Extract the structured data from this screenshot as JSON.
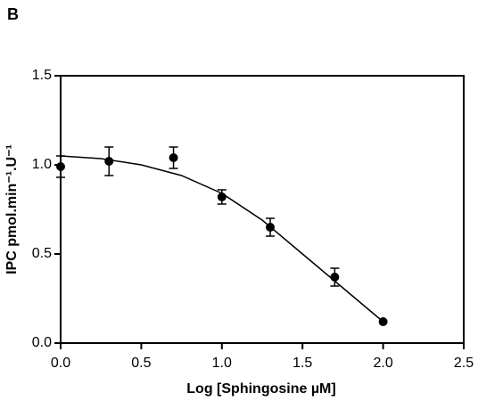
{
  "chart_data": {
    "type": "scatter",
    "panel_label": "B",
    "xlabel": "Log [Sphingosine µM]",
    "ylabel": "IPC pmol.min⁻¹.U⁻¹",
    "xlim": [
      0,
      2.5
    ],
    "ylim": [
      0,
      1.5
    ],
    "xticks": [
      {
        "value": 0,
        "label": "0.0"
      },
      {
        "value": 0.5,
        "label": "0.5"
      },
      {
        "value": 1,
        "label": "1.0"
      },
      {
        "value": 1.5,
        "label": "1.5"
      },
      {
        "value": 2,
        "label": "2.0"
      },
      {
        "value": 2.5,
        "label": "2.5"
      }
    ],
    "yticks": [
      {
        "value": 0,
        "label": "0.0"
      },
      {
        "value": 0.5,
        "label": "0.5"
      },
      {
        "value": 1,
        "label": "1.0"
      },
      {
        "value": 1.5,
        "label": "1.5"
      }
    ],
    "series": [
      {
        "kind": "points",
        "color": "#000000",
        "x": [
          0,
          0.3,
          0.7,
          1,
          1.3,
          1.7,
          2
        ],
        "values": [
          0.99,
          1.02,
          1.04,
          0.82,
          0.65,
          0.37,
          0.12
        ],
        "errors": [
          0.06,
          0.08,
          0.06,
          0.04,
          0.05,
          0.05,
          null
        ]
      },
      {
        "kind": "line",
        "color": "#000000",
        "x": [
          0,
          0.25,
          0.5,
          0.75,
          1,
          1.25,
          1.5,
          1.75,
          2
        ],
        "values": [
          1.05,
          1.035,
          1,
          0.94,
          0.84,
          0.69,
          0.5,
          0.31,
          0.12
        ]
      }
    ]
  }
}
